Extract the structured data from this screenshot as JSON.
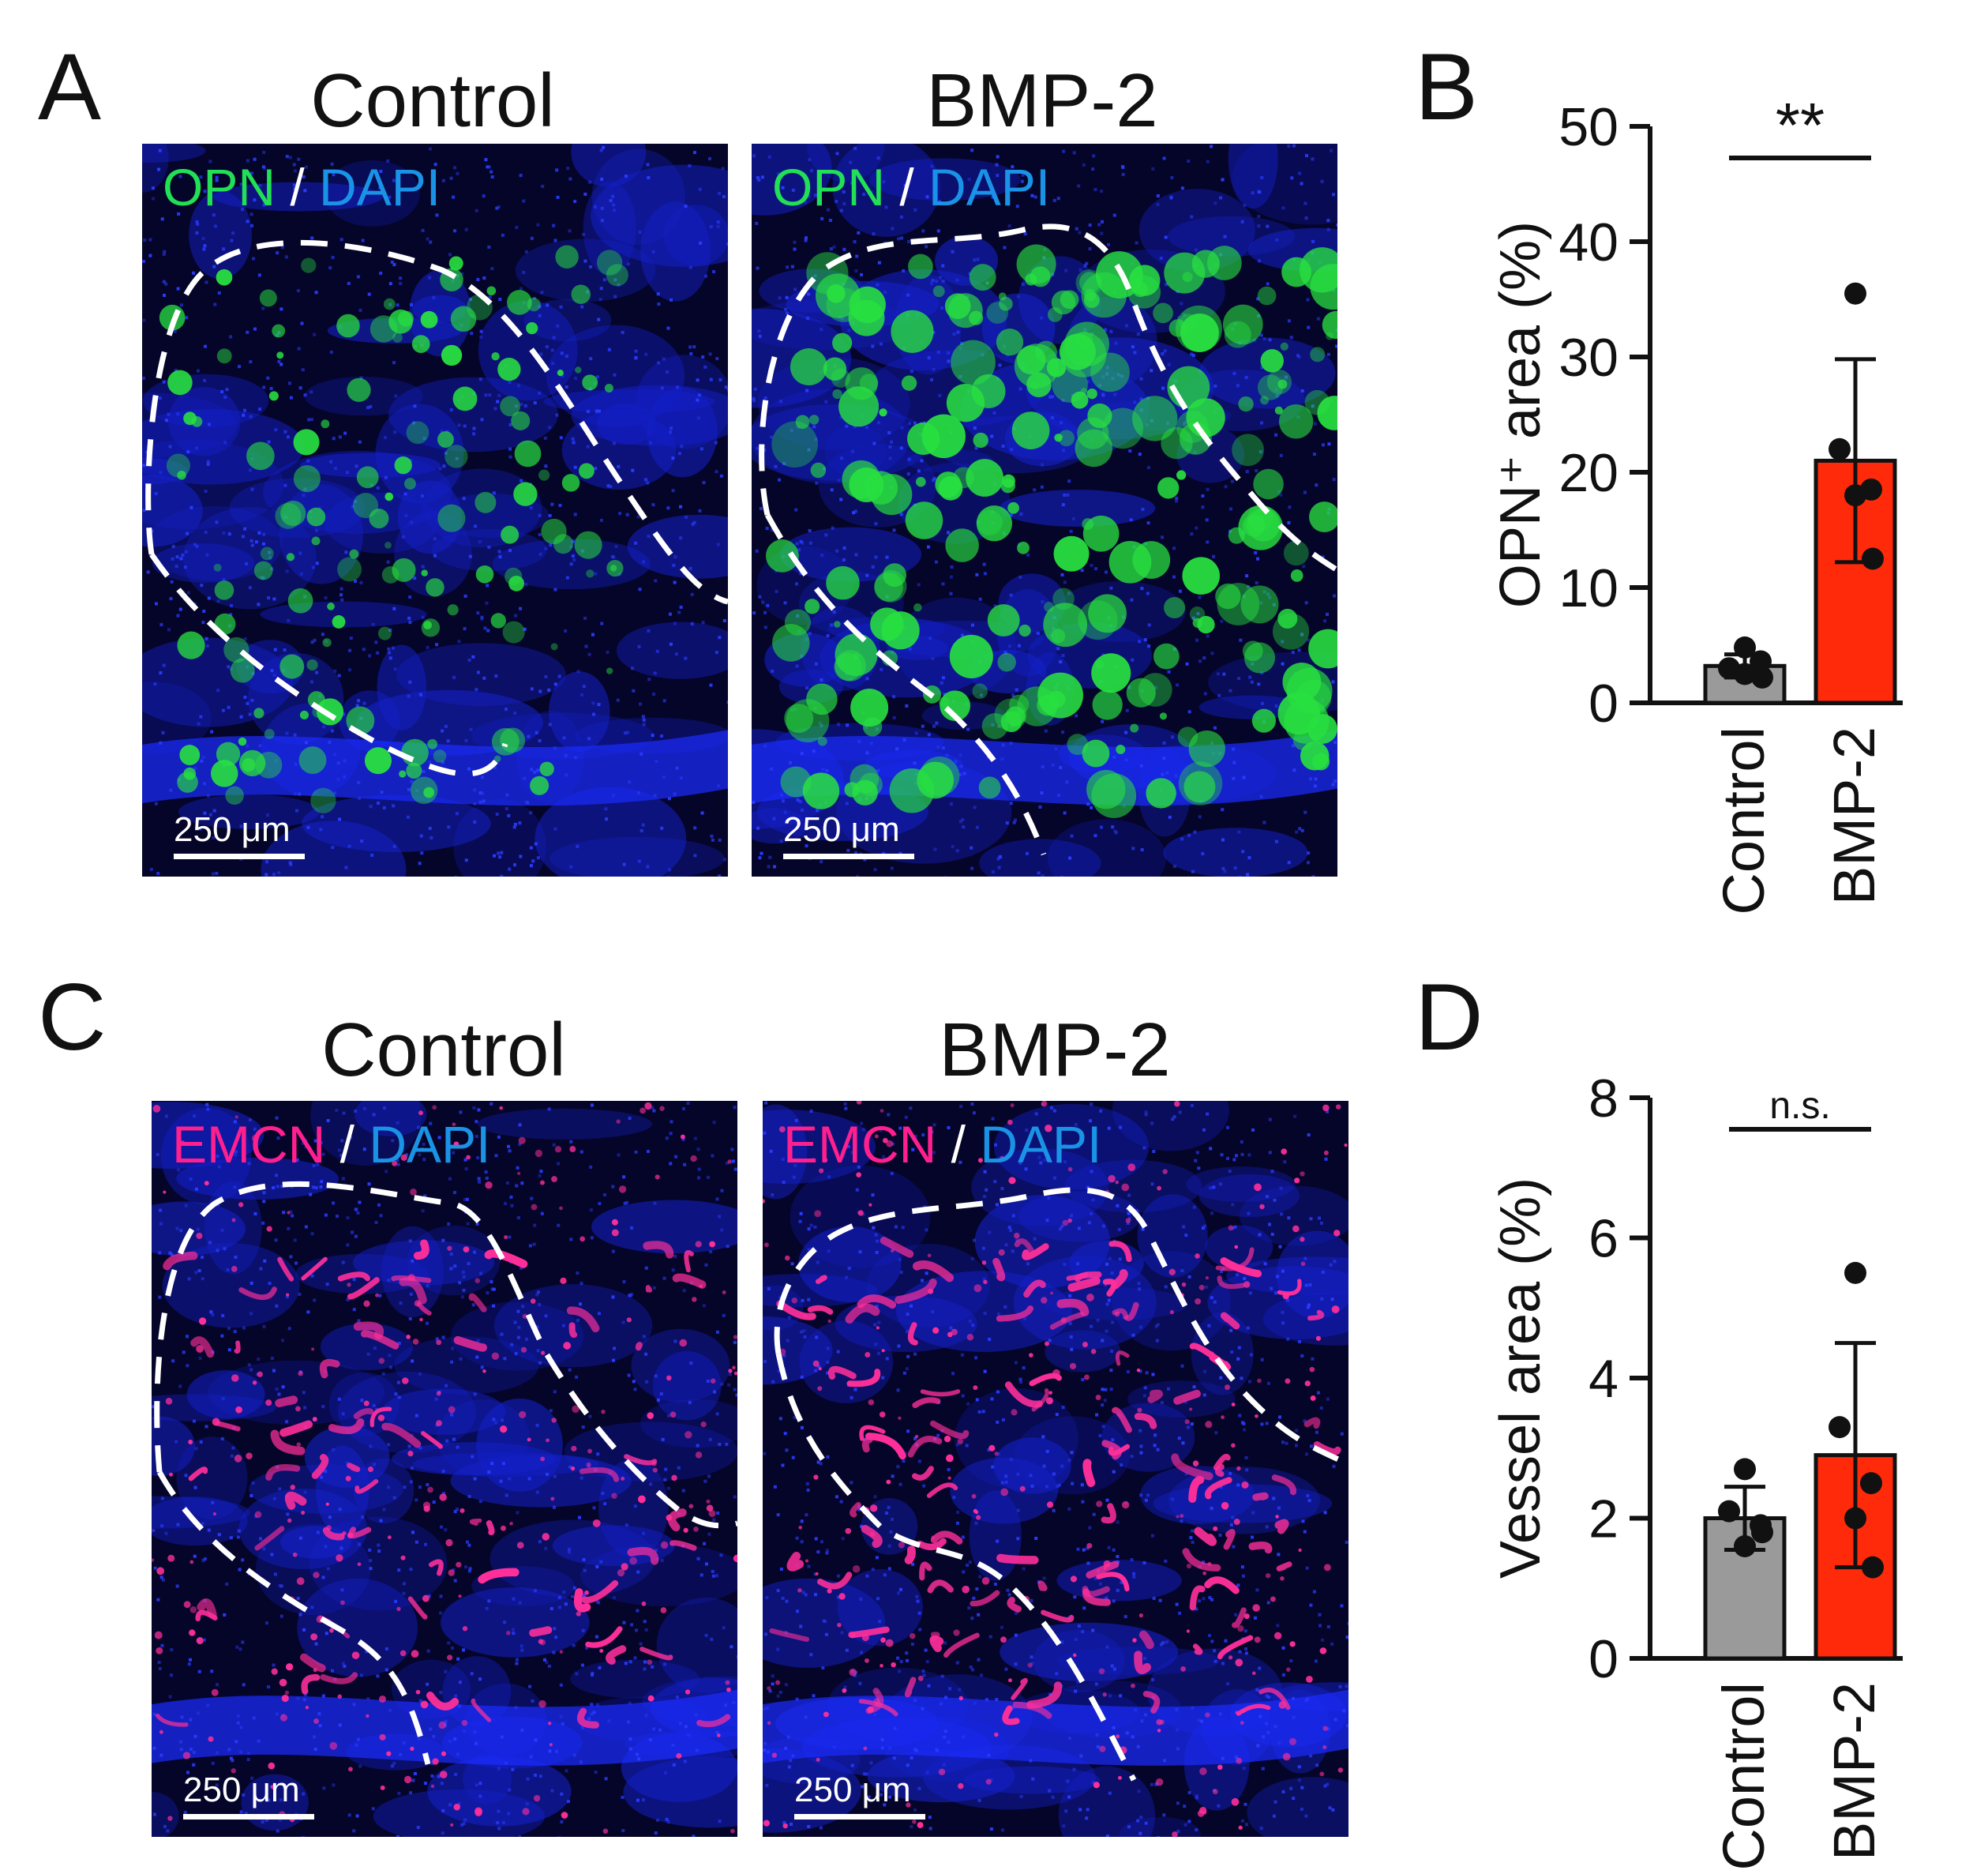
{
  "panels": {
    "A": {
      "letter": "A",
      "images": [
        {
          "title": "Control",
          "stain_a": "OPN",
          "sep": " / ",
          "stain_b": "DAPI",
          "scale": "250 μm"
        },
        {
          "title": "BMP-2",
          "stain_a": "OPN",
          "sep": " / ",
          "stain_b": "DAPI",
          "scale": "250 μm"
        }
      ]
    },
    "C": {
      "letter": "C",
      "images": [
        {
          "title": "Control",
          "stain_a": "EMCN",
          "sep": " / ",
          "stain_b": "DAPI",
          "scale": "250 μm"
        },
        {
          "title": "BMP-2",
          "stain_a": "EMCN",
          "sep": " / ",
          "stain_b": "DAPI",
          "scale": "250 μm"
        }
      ]
    },
    "B": {
      "letter": "B"
    },
    "D": {
      "letter": "D"
    }
  },
  "colors": {
    "opn": "#22e055",
    "emcn": "#ff1f8e",
    "dapi": "#1a93e6",
    "control_bar": "#9a9a9a",
    "bmp2_bar": "#ff2a0a"
  },
  "chart_data": [
    {
      "type": "bar",
      "panel": "B",
      "categories": [
        "Control",
        "BMP-2"
      ],
      "values": [
        3.2,
        21.0
      ],
      "error": [
        1.0,
        8.8
      ],
      "points": [
        [
          2.5,
          3.0,
          3.6,
          4.8,
          2.2
        ],
        [
          35.5,
          22.0,
          18.5,
          18.0,
          12.5
        ]
      ],
      "ylabel": "OPN⁺ area (%)",
      "ylim": [
        0,
        50
      ],
      "yticks": [
        0,
        10,
        20,
        30,
        40,
        50
      ],
      "significance": "**",
      "grid": false
    },
    {
      "type": "bar",
      "panel": "D",
      "categories": [
        "Control",
        "BMP-2"
      ],
      "values": [
        2.0,
        2.9
      ],
      "error": [
        0.45,
        1.6
      ],
      "points": [
        [
          2.7,
          2.1,
          1.9,
          1.6,
          1.8
        ],
        [
          5.5,
          3.3,
          2.5,
          2.0,
          1.3
        ]
      ],
      "ylabel": "Vessel area (%)",
      "ylim": [
        0,
        8
      ],
      "yticks": [
        0,
        2,
        4,
        6,
        8
      ],
      "significance": "n.s.",
      "grid": false
    }
  ]
}
